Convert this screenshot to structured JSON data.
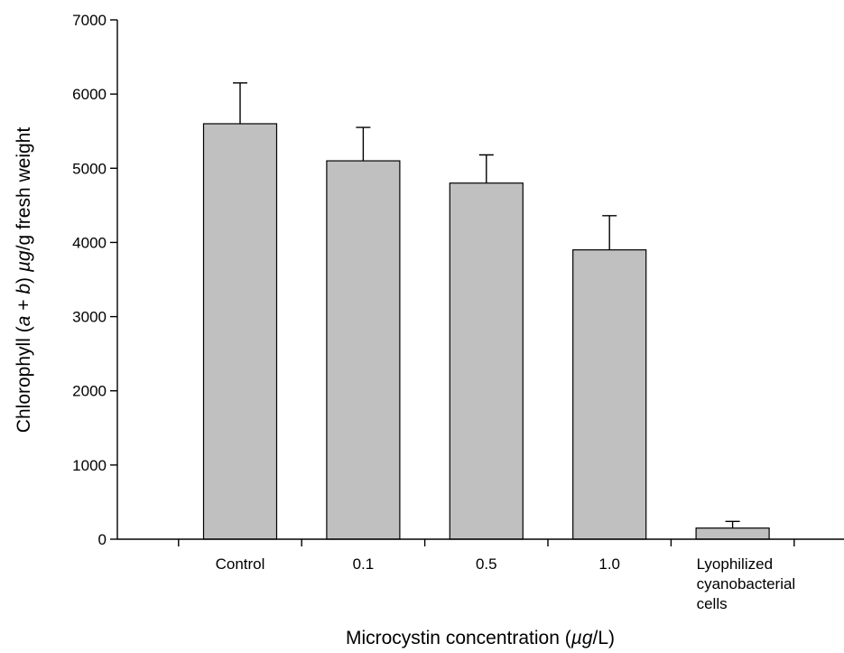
{
  "chart_data": {
    "type": "bar",
    "categories": [
      "Control",
      "0.1",
      "0.5",
      "1.0",
      "Lyophilized cyanobacterial cells"
    ],
    "category_label_lines": [
      [
        "Control"
      ],
      [
        "0.1"
      ],
      [
        "0.5"
      ],
      [
        "1.0"
      ],
      [
        "Lyophilized",
        "cyanobacterial",
        "cells"
      ]
    ],
    "values": [
      5600,
      5100,
      4800,
      3900,
      150
    ],
    "error_upper": [
      550,
      450,
      380,
      460,
      90
    ],
    "ylim": [
      0,
      7000
    ],
    "yticks": [
      0,
      1000,
      2000,
      3000,
      4000,
      5000,
      6000,
      7000
    ],
    "ylabel_parts": [
      {
        "text": "Chlorophyll (",
        "italic": false
      },
      {
        "text": "a",
        "italic": true
      },
      {
        "text": " + ",
        "italic": false
      },
      {
        "text": "b",
        "italic": true
      },
      {
        "text": ") ",
        "italic": false
      },
      {
        "text": "µg",
        "italic": true
      },
      {
        "text": "/g fresh weight",
        "italic": false
      }
    ],
    "xlabel_parts": [
      {
        "text": "Microcystin concentration (",
        "italic": false
      },
      {
        "text": "µg",
        "italic": true
      },
      {
        "text": "/L)",
        "italic": false
      }
    ],
    "bar_color": "#c0c0c0",
    "edge_color": "#000000",
    "grid": false
  }
}
